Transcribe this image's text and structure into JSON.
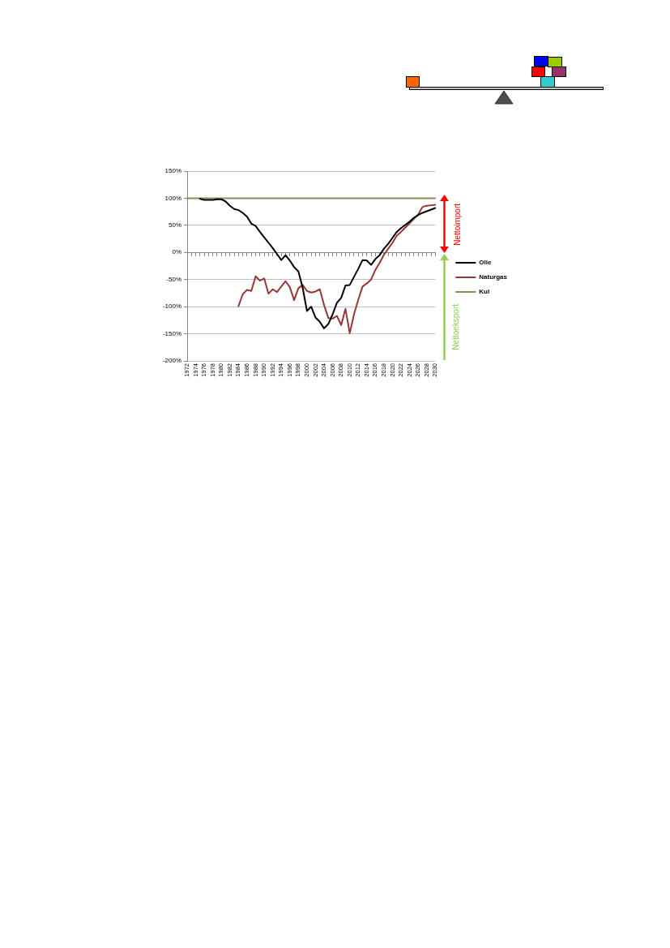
{
  "chart_data": {
    "type": "line",
    "categories": [
      "1972",
      null,
      "1974",
      null,
      "1976",
      null,
      "1978",
      null,
      "1980",
      null,
      "1982",
      null,
      "1984",
      null,
      "1986",
      null,
      "1988",
      null,
      "1990",
      null,
      "1992",
      null,
      "1994",
      null,
      "1996",
      null,
      "1998",
      null,
      "2000",
      null,
      "2002",
      null,
      "2004",
      null,
      "2006",
      null,
      "2008",
      null,
      "2010",
      null,
      "2012",
      null,
      "2014",
      null,
      "2016",
      null,
      "2018",
      null,
      "2020",
      null,
      "2022",
      null,
      "2024",
      null,
      "2026",
      null,
      "2028",
      null,
      "2030"
    ],
    "series": [
      {
        "name": "Olie",
        "color": "#000000",
        "values": [
          null,
          null,
          null,
          99,
          97,
          97,
          97,
          98,
          98,
          94,
          86,
          80,
          78,
          73,
          66,
          53,
          49,
          38,
          28,
          18,
          8,
          -3,
          -14,
          -5,
          -15,
          -27,
          -35,
          -65,
          -108,
          -100,
          -120,
          -128,
          -140,
          -132,
          -114,
          -93,
          -84,
          -61,
          -60,
          -45,
          -30,
          -14,
          -15,
          -23,
          -12,
          -5,
          7,
          16,
          27,
          38,
          45,
          51,
          57,
          64,
          69,
          73,
          76,
          79,
          82
        ]
      },
      {
        "name": "Naturgas",
        "color": "#953735",
        "values": [
          null,
          null,
          null,
          null,
          null,
          null,
          null,
          null,
          null,
          null,
          null,
          null,
          -99,
          -77,
          -69,
          -71,
          -44,
          -52,
          -48,
          -76,
          -68,
          -73,
          -63,
          -53,
          -64,
          -88,
          -66,
          -60,
          -71,
          -74,
          -72,
          -68,
          -97,
          -121,
          -122,
          -117,
          -134,
          -104,
          -149,
          -114,
          -87,
          -63,
          -57,
          -50,
          -32,
          -19,
          -4,
          7,
          18,
          31,
          38,
          46,
          54,
          62,
          70,
          84,
          86,
          87,
          88
        ]
      },
      {
        "name": "Kul",
        "color": "#948a54",
        "values": [
          100,
          100,
          100,
          100,
          100,
          100,
          100,
          100,
          100,
          100,
          100,
          100,
          100,
          100,
          100,
          100,
          100,
          100,
          100,
          100,
          100,
          100,
          100,
          100,
          100,
          100,
          100,
          100,
          100,
          100,
          100,
          100,
          100,
          100,
          100,
          100,
          100,
          100,
          100,
          100,
          100,
          100,
          100,
          100,
          100,
          100,
          100,
          100,
          100,
          100,
          100,
          100,
          100,
          100,
          100,
          100,
          100,
          100,
          100
        ]
      }
    ],
    "ylim": [
      -200,
      150
    ],
    "yticks": [
      {
        "value": -200,
        "label": "-200%"
      },
      {
        "value": -150,
        "label": "-150%"
      },
      {
        "value": -100,
        "label": "-100%"
      },
      {
        "value": -50,
        "label": "-50%"
      },
      {
        "value": 0,
        "label": "0%"
      },
      {
        "value": 50,
        "label": "50%"
      },
      {
        "value": 100,
        "label": "100%"
      },
      {
        "value": 150,
        "label": "150%"
      }
    ],
    "grid": "y",
    "legend": "right",
    "annotations": [
      "Nettoimport",
      "Nettoeksport"
    ]
  }
}
